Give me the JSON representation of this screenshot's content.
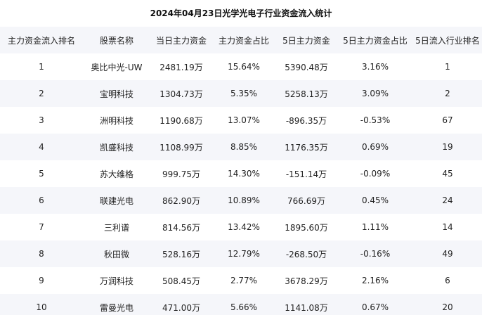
{
  "title": "2024年04月23日光学光电子行业资金流入统计",
  "table": {
    "headers": [
      "主力资金流入排名",
      "股票名称",
      "当日主力资金",
      "主力资金占比",
      "5日主力资金",
      "5日主力资金占比",
      "5日流入行业排名"
    ],
    "rows": [
      [
        "1",
        "奥比中光-UW",
        "2481.19万",
        "15.64%",
        "5390.48万",
        "3.16%",
        "1"
      ],
      [
        "2",
        "宝明科技",
        "1304.73万",
        "5.35%",
        "5258.13万",
        "3.09%",
        "2"
      ],
      [
        "3",
        "洲明科技",
        "1190.68万",
        "13.07%",
        "-896.35万",
        "-0.53%",
        "67"
      ],
      [
        "4",
        "凯盛科技",
        "1108.99万",
        "8.85%",
        "1176.35万",
        "0.69%",
        "19"
      ],
      [
        "5",
        "苏大维格",
        "999.75万",
        "14.30%",
        "-151.14万",
        "-0.09%",
        "45"
      ],
      [
        "6",
        "联建光电",
        "862.90万",
        "10.89%",
        "766.69万",
        "0.45%",
        "24"
      ],
      [
        "7",
        "三利谱",
        "814.56万",
        "13.42%",
        "1895.60万",
        "1.11%",
        "14"
      ],
      [
        "8",
        "秋田微",
        "528.16万",
        "12.79%",
        "-268.50万",
        "-0.16%",
        "49"
      ],
      [
        "9",
        "万润科技",
        "508.45万",
        "2.77%",
        "3678.29万",
        "2.16%",
        "6"
      ],
      [
        "10",
        "雷曼光电",
        "471.00万",
        "5.66%",
        "1141.08万",
        "0.67%",
        "20"
      ]
    ]
  }
}
